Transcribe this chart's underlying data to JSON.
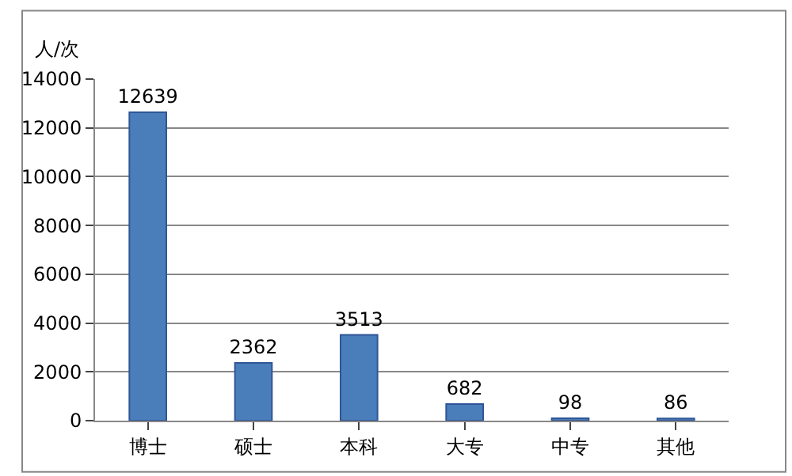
{
  "chart_data": {
    "type": "bar",
    "ylabel": "人/次",
    "categories": [
      "博士",
      "硕士",
      "本科",
      "大专",
      "中专",
      "其他"
    ],
    "values": [
      12639,
      2362,
      3513,
      682,
      98,
      86
    ],
    "color": "#4a7ebb",
    "ylim": [
      0,
      14000
    ],
    "yticks": [
      0,
      2000,
      4000,
      6000,
      8000,
      10000,
      12000,
      14000
    ],
    "grid": "y",
    "data_labels": true
  }
}
